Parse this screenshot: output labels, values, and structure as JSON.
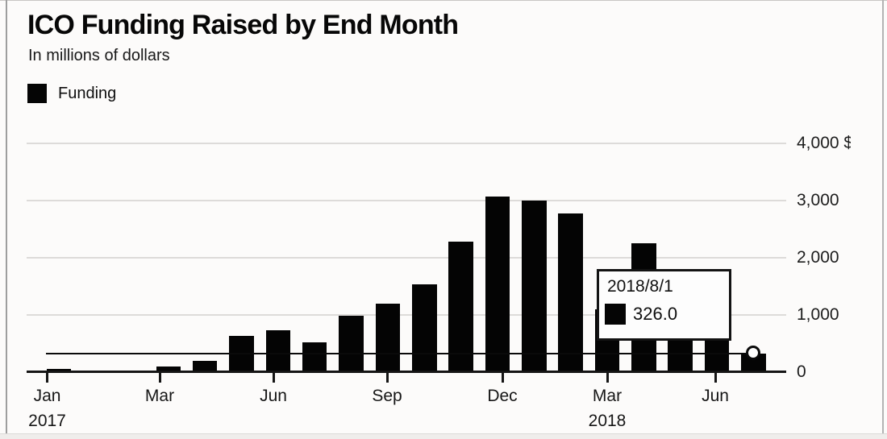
{
  "header": {
    "title": "ICO Funding Raised by End Month",
    "subtitle": "In millions of dollars"
  },
  "legend": {
    "label": "Funding",
    "swatch_color": "#000000"
  },
  "tooltip": {
    "date": "2018/8/1",
    "value": "326.0"
  },
  "chart_data": {
    "type": "bar",
    "title": "ICO Funding Raised by End Month",
    "subtitle": "In millions of dollars",
    "series_name": "Funding",
    "bar_color": "#000000",
    "grid": true,
    "legend_position": "top-left",
    "y_axis_side": "right",
    "ylim": [
      0,
      4000
    ],
    "yticks": [
      0,
      1000,
      2000,
      3000,
      4000
    ],
    "ytick_labels": [
      "0",
      "1,000",
      "2,000",
      "3,000",
      "4,000 $"
    ],
    "categories": [
      "Jan 2017",
      "Feb 2017",
      "Mar 2017",
      "Apr 2017",
      "May 2017",
      "Jun 2017",
      "Jul 2017",
      "Aug 2017",
      "Sep 2017",
      "Oct 2017",
      "Nov 2017",
      "Dec 2017",
      "Jan 2018",
      "Feb 2018",
      "Mar 2018",
      "Apr 2018",
      "May 2018",
      "Jun 2018",
      "Jul 2018",
      "Aug 2018"
    ],
    "values": [
      60,
      5,
      10,
      95,
      200,
      630,
      730,
      520,
      985,
      1200,
      1535,
      2280,
      3080,
      3010,
      2775,
      1100,
      2260,
      950,
      650,
      326
    ],
    "xticks": [
      {
        "label": "Jan",
        "year": "2017",
        "index": 0
      },
      {
        "label": "Mar",
        "index": 2
      },
      {
        "label": "Jun",
        "index": 5
      },
      {
        "label": "Sep",
        "index": 8
      },
      {
        "label": "Dec",
        "index": 11
      },
      {
        "label": "Mar",
        "year": "2018",
        "index": 14
      },
      {
        "label": "Jun",
        "index": 17
      }
    ],
    "reference_line_value": 326,
    "highlight": {
      "category": "Aug 2018",
      "date": "2018/8/1",
      "value": 326.0,
      "marker": "open-circle"
    }
  }
}
